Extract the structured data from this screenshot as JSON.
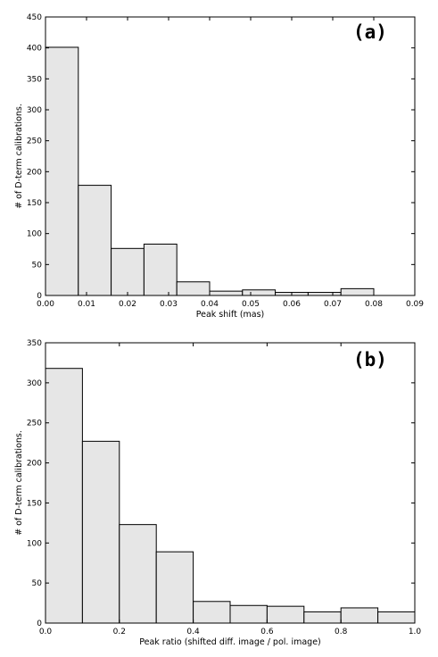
{
  "chart_data": [
    {
      "type": "bar",
      "panel_label": "(a)",
      "xlabel": "Peak shift (mas)",
      "ylabel": "# of D-term calibrations.",
      "xlim": [
        0.0,
        0.09
      ],
      "ylim": [
        0,
        450
      ],
      "xticks": [
        "0.00",
        "0.01",
        "0.02",
        "0.03",
        "0.04",
        "0.05",
        "0.06",
        "0.07",
        "0.08",
        "0.09"
      ],
      "yticks": [
        "0",
        "50",
        "100",
        "150",
        "200",
        "250",
        "300",
        "350",
        "400",
        "450"
      ],
      "bin_edges": [
        0.0,
        0.008,
        0.016,
        0.024,
        0.032,
        0.04,
        0.048,
        0.056,
        0.064,
        0.072,
        0.08
      ],
      "values": [
        401,
        178,
        76,
        83,
        22,
        7,
        9,
        5,
        5,
        11
      ],
      "bar_color": "#e6e6e6"
    },
    {
      "type": "bar",
      "panel_label": "(b)",
      "xlabel": "Peak ratio (shifted diff. image / pol. image)",
      "ylabel": "# of D-term calibrations.",
      "xlim": [
        0.0,
        1.0
      ],
      "ylim": [
        0,
        350
      ],
      "xticks": [
        "0.0",
        "0.2",
        "0.4",
        "0.6",
        "0.8",
        "1.0"
      ],
      "yticks": [
        "0",
        "50",
        "100",
        "150",
        "200",
        "250",
        "300",
        "350"
      ],
      "bin_edges": [
        0.0,
        0.1,
        0.2,
        0.3,
        0.4,
        0.5,
        0.6,
        0.7,
        0.8,
        0.9,
        1.0
      ],
      "values": [
        318,
        227,
        123,
        89,
        27,
        22,
        21,
        14,
        19,
        14
      ],
      "bar_color": "#e6e6e6"
    }
  ]
}
